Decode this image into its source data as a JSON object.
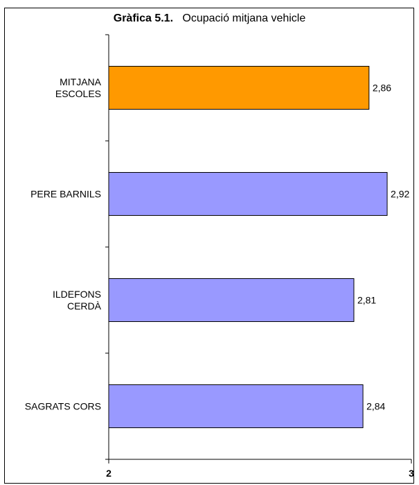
{
  "chart_data": {
    "type": "bar",
    "orientation": "horizontal",
    "title_lead": "Gràfica 5.1.",
    "title": "Ocupació mitjana vehicle",
    "categories": [
      [
        "MITJANA",
        "ESCOLES"
      ],
      [
        "PERE BARNILS"
      ],
      [
        "ILDEFONS",
        "CERDÀ"
      ],
      [
        "SAGRATS CORS"
      ]
    ],
    "values": [
      2.86,
      2.92,
      2.81,
      2.84
    ],
    "value_labels": [
      "2,86",
      "2,92",
      "2,81",
      "2,84"
    ],
    "bar_colors": [
      "#ff9900",
      "#9999ff",
      "#9999ff",
      "#9999ff"
    ],
    "xlim": [
      2,
      3
    ],
    "x_ticks": [
      2,
      3
    ],
    "x_tick_labels": [
      "2",
      "3"
    ],
    "grid": false,
    "legend": "none"
  }
}
